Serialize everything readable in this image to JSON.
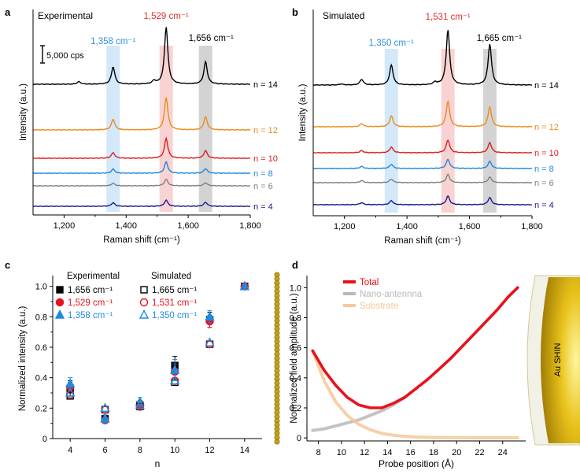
{
  "chart_data": [
    {
      "panel": "a",
      "type": "line",
      "title": "Experimental",
      "xlabel": "Raman shift (cm⁻¹)",
      "ylabel": "Intensity (a.u.)",
      "xlim": [
        1100,
        1800
      ],
      "xticks": [
        "1,200",
        "1,400",
        "1,600",
        "1,800"
      ],
      "scale_bar": "5,000 cps",
      "bands": [
        {
          "label": "1,358 cm⁻¹",
          "center": 1358,
          "color": "#2f8fdc"
        },
        {
          "label": "1,529 cm⁻¹",
          "center": 1529,
          "color": "#e03030"
        },
        {
          "label": "1,656 cm⁻¹",
          "center": 1656,
          "color": "#000000"
        }
      ],
      "series": [
        {
          "name": "n = 4",
          "color": "#1a1a8c",
          "peaks": [
            [
              1358,
              0.35
            ],
            [
              1529,
              0.6
            ],
            [
              1656,
              0.4
            ]
          ]
        },
        {
          "name": "n = 6",
          "color": "#808080",
          "peaks": [
            [
              1358,
              0.25
            ],
            [
              1529,
              0.65
            ],
            [
              1656,
              0.3
            ]
          ]
        },
        {
          "name": "n = 8",
          "color": "#1f86e0",
          "peaks": [
            [
              1358,
              0.4
            ],
            [
              1529,
              1.1
            ],
            [
              1656,
              0.45
            ]
          ]
        },
        {
          "name": "n = 10",
          "color": "#e01c1c",
          "peaks": [
            [
              1358,
              0.55
            ],
            [
              1529,
              1.95
            ],
            [
              1656,
              0.75
            ]
          ]
        },
        {
          "name": "n = 12",
          "color": "#ee8a1a",
          "peaks": [
            [
              1358,
              1.05
            ],
            [
              1529,
              3.2
            ],
            [
              1656,
              1.3
            ]
          ]
        },
        {
          "name": "n = 14",
          "color": "#000000",
          "peaks": [
            [
              1248,
              0.25
            ],
            [
              1358,
              1.7
            ],
            [
              1490,
              0.3
            ],
            [
              1529,
              5.6
            ],
            [
              1656,
              2.2
            ]
          ]
        }
      ]
    },
    {
      "panel": "b",
      "type": "line",
      "title": "Simulated",
      "xlabel": "Raman shift (cm⁻¹)",
      "ylabel": "Intensity (a.u.)",
      "xlim": [
        1100,
        1800
      ],
      "xticks": [
        "1,200",
        "1,400",
        "1,600",
        "1,800"
      ],
      "bands": [
        {
          "label": "1,350 cm⁻¹",
          "center": 1350,
          "color": "#2f8fdc"
        },
        {
          "label": "1,531 cm⁻¹",
          "center": 1531,
          "color": "#e03030"
        },
        {
          "label": "1,665 cm⁻¹",
          "center": 1665,
          "color": "#000000"
        }
      ],
      "series": [
        {
          "name": "n = 4",
          "color": "#1a1a8c",
          "peaks": [
            [
              1255,
              0.2
            ],
            [
              1350,
              0.4
            ],
            [
              1531,
              0.85
            ],
            [
              1665,
              0.7
            ]
          ]
        },
        {
          "name": "n = 6",
          "color": "#808080",
          "peaks": [
            [
              1255,
              0.2
            ],
            [
              1350,
              0.35
            ],
            [
              1531,
              0.8
            ],
            [
              1665,
              0.55
            ]
          ]
        },
        {
          "name": "n = 8",
          "color": "#1f86e0",
          "peaks": [
            [
              1255,
              0.2
            ],
            [
              1350,
              0.4
            ],
            [
              1531,
              0.9
            ],
            [
              1665,
              0.7
            ]
          ]
        },
        {
          "name": "n = 10",
          "color": "#e01c1c",
          "peaks": [
            [
              1255,
              0.2
            ],
            [
              1350,
              0.55
            ],
            [
              1531,
              1.25
            ],
            [
              1665,
              1.0
            ]
          ]
        },
        {
          "name": "n = 12",
          "color": "#ee8a1a",
          "peaks": [
            [
              1255,
              0.3
            ],
            [
              1350,
              1.05
            ],
            [
              1531,
              2.5
            ],
            [
              1665,
              1.95
            ]
          ]
        },
        {
          "name": "n = 14",
          "color": "#000000",
          "peaks": [
            [
              1190,
              0.1
            ],
            [
              1255,
              0.55
            ],
            [
              1350,
              1.95
            ],
            [
              1490,
              0.25
            ],
            [
              1531,
              5.4
            ],
            [
              1665,
              4.0
            ]
          ]
        }
      ]
    },
    {
      "panel": "c",
      "type": "scatter",
      "xlabel": "n",
      "ylabel": "Normalized intensity (a.u.)",
      "xlim": [
        3,
        15
      ],
      "ylim": [
        0,
        1.05
      ],
      "xticks": [
        "4",
        "6",
        "8",
        "10",
        "12",
        "14"
      ],
      "yticks": [
        "0",
        "0.2",
        "0.4",
        "0.6",
        "0.8",
        "1.0"
      ],
      "legend_titles": [
        "Experimental",
        "Simulated"
      ],
      "x": [
        4,
        6,
        8,
        10,
        12,
        14
      ],
      "series": [
        {
          "name": "1,656 cm⁻¹",
          "group": "Experimental",
          "marker": "square-filled",
          "color": "#000000",
          "values": [
            0.33,
            0.13,
            0.22,
            0.48,
            0.78,
            1.0
          ],
          "errors": [
            0.05,
            0.02,
            0.03,
            0.06,
            0.05,
            0
          ]
        },
        {
          "name": "1,529 cm⁻¹",
          "group": "Experimental",
          "marker": "circle-filled",
          "color": "#e8121c",
          "values": [
            0.34,
            0.12,
            0.22,
            0.44,
            0.77,
            1.0
          ],
          "errors": [
            0.03,
            0.02,
            0.02,
            0.05,
            0.04,
            0
          ]
        },
        {
          "name": "1,358 cm⁻¹",
          "group": "Experimental",
          "marker": "triangle-filled",
          "color": "#1f8be0",
          "values": [
            0.36,
            0.13,
            0.24,
            0.45,
            0.8,
            1.0
          ],
          "errors": [
            0.04,
            0.03,
            0.03,
            0.07,
            0.04,
            0
          ]
        },
        {
          "name": "1,665 cm⁻¹",
          "group": "Simulated",
          "marker": "square-open",
          "color": "#000000",
          "values": [
            0.28,
            0.19,
            0.21,
            0.37,
            0.62,
            1.0
          ]
        },
        {
          "name": "1,531 cm⁻¹",
          "group": "Simulated",
          "marker": "circle-open",
          "color": "#e8121c",
          "values": [
            0.29,
            0.19,
            0.21,
            0.38,
            0.62,
            1.0
          ]
        },
        {
          "name": "1,350 cm⁻¹",
          "group": "Simulated",
          "marker": "triangle-open",
          "color": "#1f8be0",
          "values": [
            0.3,
            0.2,
            0.22,
            0.38,
            0.63,
            1.0
          ]
        }
      ]
    },
    {
      "panel": "d",
      "type": "line",
      "xlabel": "Probe position (Å)",
      "ylabel": "Normalized field amplitude (a.u.)",
      "xlim": [
        7,
        26
      ],
      "ylim": [
        -0.02,
        1.08
      ],
      "xticks": [
        "8",
        "10",
        "12",
        "14",
        "16",
        "18",
        "20",
        "22",
        "24"
      ],
      "yticks": [
        "0",
        "0.2",
        "0.4",
        "0.6",
        "0.8",
        "1.0"
      ],
      "particle_label": "Au SHIN",
      "series": [
        {
          "name": "Total",
          "color": "#e8121c",
          "x": [
            7.5,
            8.5,
            9.5,
            10.5,
            11.5,
            12.5,
            13.5,
            14.5,
            15.5,
            16.5,
            17.5,
            18.5,
            19.5,
            20.5,
            21.5,
            22.5,
            23.5,
            24.5,
            25.3
          ],
          "values": [
            0.58,
            0.45,
            0.35,
            0.27,
            0.22,
            0.2,
            0.2,
            0.23,
            0.27,
            0.33,
            0.39,
            0.46,
            0.53,
            0.61,
            0.69,
            0.77,
            0.85,
            0.94,
            1.0
          ]
        },
        {
          "name": "Nano-antennna",
          "color": "#b9b9b9",
          "x": [
            7.5,
            8.5,
            9.5,
            10.5,
            11.5,
            12.5,
            13.5,
            14.5,
            15.5
          ],
          "values": [
            0.05,
            0.06,
            0.08,
            0.1,
            0.12,
            0.15,
            0.18,
            0.22,
            0.27
          ]
        },
        {
          "name": "Substrate",
          "color": "#f7c79a",
          "x": [
            7.5,
            8.5,
            9.5,
            10.5,
            11.5,
            12.5,
            13.5,
            14.5,
            15.5,
            16.5,
            18.0,
            20.0,
            22.0,
            24.0,
            25.3
          ],
          "values": [
            0.58,
            0.38,
            0.24,
            0.15,
            0.09,
            0.055,
            0.03,
            0.018,
            0.01,
            0.006,
            0.003,
            0.002,
            0.001,
            0.001,
            0.001
          ]
        }
      ]
    }
  ]
}
